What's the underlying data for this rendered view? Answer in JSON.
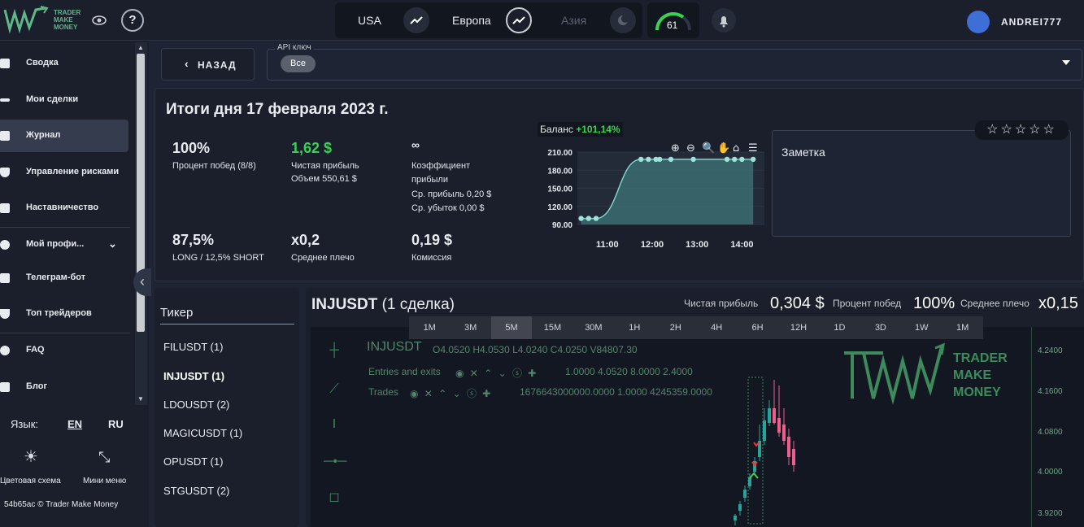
{
  "header": {
    "logo": {
      "line1": "TRADER",
      "line2": "MAKE",
      "line3": "MONEY"
    },
    "markets": [
      {
        "label": "USA",
        "active": true
      },
      {
        "label": "Европа",
        "active": true
      },
      {
        "label": "Азия",
        "active": false
      }
    ],
    "gauge_value": "61",
    "username": "ANDREI777",
    "help_glyph": "?"
  },
  "sidebar": {
    "items": [
      {
        "label": "Сводка",
        "icon": "dashboard-icon"
      },
      {
        "label": "Мои сделки",
        "icon": "list-icon"
      },
      {
        "label": "Журнал",
        "icon": "journal-icon",
        "active": true
      },
      {
        "label": "Управление рисками",
        "icon": "shield-icon"
      },
      {
        "label": "Наставничество",
        "icon": "people-icon"
      },
      {
        "label": "Мой профи...",
        "icon": "user-icon"
      },
      {
        "label": "Телеграм-бот",
        "icon": "bot-icon"
      },
      {
        "label": "Топ трейдеров",
        "icon": "trophy-icon"
      },
      {
        "label": "FAQ",
        "icon": "help-icon"
      },
      {
        "label": "Блог",
        "icon": "megaphone-icon"
      }
    ],
    "language_label": "Язык:",
    "lang_en": "EN",
    "lang_ru": "RU",
    "color_scheme_label": "Цветовая схема",
    "mini_menu_label": "Мини меню",
    "footer": "54b65ac © Trader Make Money"
  },
  "toolbar": {
    "back_label": "НАЗАД",
    "api_label": "API ключ",
    "api_value": "Все"
  },
  "summary": {
    "title": "Итоги дня 17 февраля 2023 г.",
    "win_rate": "100%",
    "win_rate_label": "Процент побед (8/8)",
    "net_profit": "1,62 $",
    "net_profit_label": "Чистая прибыль",
    "volume_label": "Объем 550,61 $",
    "ratio_value": "∞",
    "ratio_label1": "Коэффициент",
    "ratio_label2": "прибыли",
    "avg_profit": "Ср. прибыль 0,20 $",
    "avg_loss": "Ср. убыток 0,00 $",
    "long_short": "87,5%",
    "long_short_label": "LONG / 12,5% SHORT",
    "leverage": "x0,2",
    "leverage_label": "Среднее плечо",
    "commission": "0,19 $",
    "commission_label": "Комиссия",
    "balance_label": "Баланс",
    "balance_change": "+101,14%",
    "note_label": "Заметка",
    "stars": "☆☆☆☆☆",
    "rating": 0
  },
  "chart_data": {
    "type": "area",
    "x": [
      "10:25",
      "10:35",
      "10:45",
      "11:45",
      "11:55",
      "12:05",
      "12:10",
      "12:25",
      "12:55",
      "13:40",
      "13:50",
      "14:00",
      "14:15"
    ],
    "values": [
      100,
      100,
      100,
      198,
      198,
      198,
      198,
      198,
      198,
      198,
      198,
      198,
      198
    ],
    "xticks": [
      "11:00",
      "12:00",
      "13:00",
      "14:00"
    ],
    "yticks": [
      "210.00",
      "180.00",
      "150.00",
      "120.00",
      "90.00"
    ],
    "ylim": [
      90,
      210
    ]
  },
  "tickers": {
    "header": "Тикер",
    "items": [
      {
        "label": "FILUSDT (1)",
        "selected": false
      },
      {
        "label": "INJUSDT (1)",
        "selected": true
      },
      {
        "label": "LDOUSDT (2)",
        "selected": false
      },
      {
        "label": "MAGICUSDT (1)",
        "selected": false
      },
      {
        "label": "OPUSDT (1)",
        "selected": false
      },
      {
        "label": "STGUSDT (2)",
        "selected": false
      }
    ]
  },
  "trade_chart": {
    "symbol": "INJUSDT",
    "sub": "(1 сделка)",
    "net_profit_label": "Чистая прибыль",
    "net_profit": "0,304 $",
    "win_label": "Процент побед",
    "win": "100%",
    "lev_label": "Среднее плечо",
    "lev": "x0,15",
    "timeframes": [
      "1M",
      "3M",
      "5M",
      "15M",
      "30M",
      "1H",
      "2H",
      "4H",
      "6H",
      "12H",
      "1D",
      "3D",
      "1W",
      "1M"
    ],
    "active_tf": "5M",
    "ohlc": "O4.0520  H4.0530  L4.0240  C4.0250  V84807.30",
    "entries_label": "Entries and exits",
    "entries_values": "1.0000   4.0520   8.0000   2.4000",
    "trades_label": "Trades",
    "trades_values": "1676643000000.0000   1.0000   4245359.0000",
    "price_ticks": [
      "4.2400",
      "4.1600",
      "4.0800",
      "4.0000",
      "3.9200"
    ],
    "watermark": {
      "line1": "TRADER",
      "line2": "MAKE",
      "line3": "MONEY"
    }
  }
}
